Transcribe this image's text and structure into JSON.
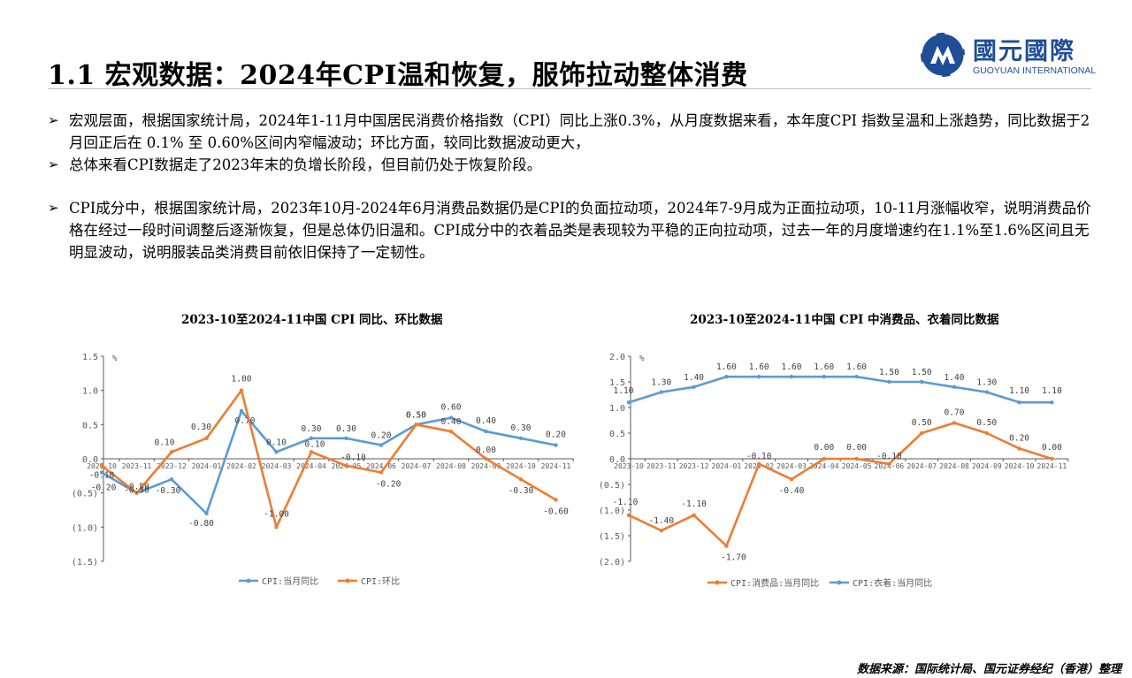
{
  "header": {
    "title": "1.1 宏观数据：2024年CPI温和恢复，服饰拉动整体消费",
    "logo_cn": "國元國際",
    "logo_en": "GUOYUAN INTERNATIONAL"
  },
  "bullets": [
    "宏观层面，根据国家统计局，2024年1-11月中国居民消费价格指数（CPI）同比上涨0.3%，从月度数据来看，本年度CPI 指数呈温和上涨趋势，同比数据于2月回正后在 0.1% 至 0.60%区间内窄幅波动；环比方面，较同比数据波动更大，",
    "总体来看CPI数据走了2023年末的负增长阶段，但目前仍处于恢复阶段。",
    "CPI成分中，根据国家统计局，2023年10月-2024年6月消费品数据仍是CPI的负面拉动项，2024年7-9月成为正面拉动项，10-11月涨幅收窄，说明消费品价格在经过一段时间调整后逐渐恢复，但是总体仍旧温和。CPI成分中的衣着品类是表现较为平稳的正向拉动项，过去一年的月度增速约在1.1%至1.6%区间且无明显波动，说明服装品类消费目前依旧保持了一定韧性。"
  ],
  "source": "数据来源：国际统计局、国元证券经纪（香港）整理",
  "colors": {
    "blue": "#5b9bd5",
    "orange": "#ed7d31",
    "axis": "#595959",
    "brand": "#1f4e96"
  },
  "chart_data": [
    {
      "type": "line",
      "title": "2023-10至2024-11中国 CPI 同比、环比数据",
      "unit": "%",
      "categories": [
        "2023-10",
        "2023-11",
        "2023-12",
        "2024-01",
        "2024-02",
        "2024-03",
        "2024-04",
        "2024-05",
        "2024-06",
        "2024-07",
        "2024-08",
        "2024-09",
        "2024-10",
        "2024-11"
      ],
      "ylim": [
        -1.5,
        1.5
      ],
      "yticks": [
        "1.5",
        "1.0",
        "0.5",
        "0.0",
        "(0.5)",
        "(1.0)",
        "(1.5)"
      ],
      "legend_position": "bottom",
      "series": [
        {
          "name": "CPI:当月同比",
          "color": "#5b9bd5",
          "values": [
            -0.2,
            -0.5,
            -0.3,
            -0.8,
            0.7,
            0.1,
            0.3,
            0.3,
            0.2,
            0.5,
            0.6,
            0.4,
            0.3,
            0.2
          ],
          "labels": [
            "-0.20",
            "-0.50",
            "-0.30",
            "-0.80",
            "0.70",
            "0.10",
            "0.30",
            "0.30",
            "0.20",
            "0.50",
            "0.60",
            "0.40",
            "0.30",
            "0.20"
          ]
        },
        {
          "name": "CPI:环比",
          "color": "#ed7d31",
          "values": [
            -0.1,
            -0.5,
            0.1,
            0.3,
            1.0,
            -1.0,
            0.1,
            -0.1,
            -0.2,
            0.5,
            0.4,
            0.0,
            -0.3,
            -0.6
          ],
          "labels": [
            "-0.10",
            "-0.50",
            "0.10",
            "0.30",
            "1.00",
            "-1.00",
            "0.10",
            "-0.10",
            "-0.20",
            "0.50",
            "0.40",
            "0.00",
            "-0.30",
            "-0.60"
          ]
        }
      ]
    },
    {
      "type": "line",
      "title": "2023-10至2024-11中国 CPI 中消费品、衣着同比数据",
      "unit": "%",
      "categories": [
        "2023-10",
        "2023-11",
        "2023-12",
        "2024-01",
        "2024-02",
        "2024-03",
        "2024-04",
        "2024-05",
        "2024-06",
        "2024-07",
        "2024-08",
        "2024-09",
        "2024-10",
        "2024-11"
      ],
      "ylim": [
        -2.0,
        2.0
      ],
      "yticks": [
        "2.0",
        "1.5",
        "1.0",
        "0.5",
        "0.0",
        "(0.5)",
        "(1.0)",
        "(1.5)",
        "(2.0)"
      ],
      "legend_position": "bottom",
      "series": [
        {
          "name": "CPI:消费品:当月同比",
          "color": "#ed7d31",
          "values": [
            -1.1,
            -1.4,
            -1.1,
            -1.7,
            -0.1,
            -0.4,
            0.0,
            0.0,
            -0.1,
            0.5,
            0.7,
            0.5,
            0.2,
            0.0
          ],
          "labels": [
            "-1.10",
            "-1.40",
            "-1.10",
            "-1.70",
            "-0.10",
            "-0.40",
            "0.00",
            "0.00",
            "-0.10",
            "0.50",
            "0.70",
            "0.50",
            "0.20",
            "0.00"
          ]
        },
        {
          "name": "CPI:衣着:当月同比",
          "color": "#5b9bd5",
          "values": [
            1.1,
            1.3,
            1.4,
            1.6,
            1.6,
            1.6,
            1.6,
            1.6,
            1.5,
            1.5,
            1.4,
            1.3,
            1.1,
            1.1
          ],
          "labels": [
            "1.10",
            "1.30",
            "1.40",
            "1.60",
            "1.60",
            "1.60",
            "1.60",
            "1.60",
            "1.50",
            "1.50",
            "1.40",
            "1.30",
            "1.10",
            "1.10"
          ]
        }
      ]
    }
  ]
}
